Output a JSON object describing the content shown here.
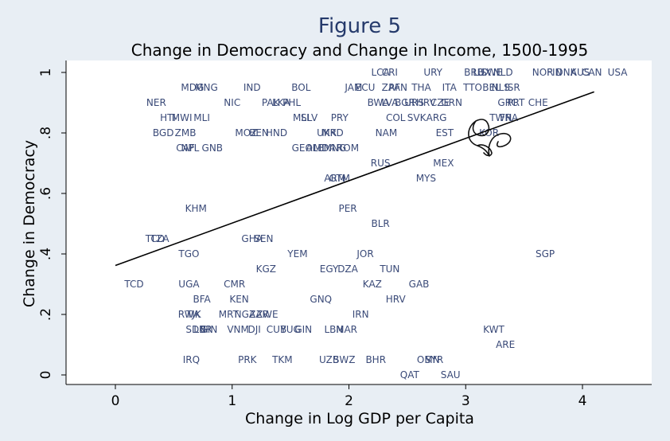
{
  "chart_data": {
    "type": "scatter",
    "title": "Figure 5",
    "subtitle": "Change in Democracy and Change in Income, 1500-1995",
    "xlabel": "Change in Log GDP per Capita",
    "ylabel": "Change in Democracy",
    "xlim": [
      -0.42,
      4.6
    ],
    "ylim": [
      -0.03,
      1.03
    ],
    "xticks": [
      0,
      1,
      2,
      3,
      4
    ],
    "xtick_labels": [
      "0",
      "1",
      "2",
      "3",
      "4"
    ],
    "yticks": [
      0,
      0.2,
      0.4,
      0.6,
      0.8,
      1
    ],
    "ytick_labels": [
      "0",
      ".2",
      ".4",
      ".6",
      ".8",
      "1"
    ],
    "grid": false,
    "fit_line": {
      "x": [
        0,
        4.1
      ],
      "y": [
        0.362,
        0.936
      ]
    },
    "points": [
      {
        "label": "LCA",
        "x": 2.27,
        "y": 1.0
      },
      {
        "label": "CRI",
        "x": 2.35,
        "y": 1.0
      },
      {
        "label": "URY",
        "x": 2.72,
        "y": 1.0
      },
      {
        "label": "BRB",
        "x": 3.07,
        "y": 1.0
      },
      {
        "label": "LUX",
        "x": 3.14,
        "y": 1.0
      },
      {
        "label": "SWE",
        "x": 3.22,
        "y": 1.0
      },
      {
        "label": "NLD",
        "x": 3.32,
        "y": 1.0
      },
      {
        "label": "NOR",
        "x": 3.66,
        "y": 1.0
      },
      {
        "label": "FIN",
        "x": 3.76,
        "y": 1.0
      },
      {
        "label": "DNK",
        "x": 3.86,
        "y": 1.0
      },
      {
        "label": "AUS",
        "x": 3.98,
        "y": 1.0
      },
      {
        "label": "CAN",
        "x": 4.08,
        "y": 1.0
      },
      {
        "label": "USA",
        "x": 4.3,
        "y": 1.0
      },
      {
        "label": "MDG",
        "x": 0.66,
        "y": 0.95
      },
      {
        "label": "MNG",
        "x": 0.78,
        "y": 0.95
      },
      {
        "label": "IND",
        "x": 1.17,
        "y": 0.95
      },
      {
        "label": "BOL",
        "x": 1.59,
        "y": 0.95
      },
      {
        "label": "JAM",
        "x": 2.04,
        "y": 0.95
      },
      {
        "label": "ECU",
        "x": 2.14,
        "y": 0.95
      },
      {
        "label": "ZAF",
        "x": 2.36,
        "y": 0.95
      },
      {
        "label": "PAN",
        "x": 2.42,
        "y": 0.95
      },
      {
        "label": "THA",
        "x": 2.62,
        "y": 0.95
      },
      {
        "label": "ITA",
        "x": 2.86,
        "y": 0.95
      },
      {
        "label": "TTO",
        "x": 3.06,
        "y": 0.95
      },
      {
        "label": "BEL",
        "x": 3.22,
        "y": 0.95
      },
      {
        "label": "NLS",
        "x": 3.3,
        "y": 0.95
      },
      {
        "label": "ISR",
        "x": 3.4,
        "y": 0.95
      },
      {
        "label": "NER",
        "x": 0.35,
        "y": 0.9
      },
      {
        "label": "NIC",
        "x": 1.0,
        "y": 0.9
      },
      {
        "label": "PAK",
        "x": 1.33,
        "y": 0.9
      },
      {
        "label": "LKA",
        "x": 1.42,
        "y": 0.9
      },
      {
        "label": "PHL",
        "x": 1.51,
        "y": 0.9
      },
      {
        "label": "BWA",
        "x": 2.25,
        "y": 0.9
      },
      {
        "label": "LVA",
        "x": 2.35,
        "y": 0.9
      },
      {
        "label": "BGR",
        "x": 2.48,
        "y": 0.9
      },
      {
        "label": "URS",
        "x": 2.56,
        "y": 0.9
      },
      {
        "label": "HRV",
        "x": 2.66,
        "y": 0.9
      },
      {
        "label": "CZE",
        "x": 2.78,
        "y": 0.9
      },
      {
        "label": "GRN",
        "x": 2.88,
        "y": 0.9
      },
      {
        "label": "GRC",
        "x": 3.36,
        "y": 0.9
      },
      {
        "label": "PRT",
        "x": 3.43,
        "y": 0.9
      },
      {
        "label": "CHE",
        "x": 3.62,
        "y": 0.9
      },
      {
        "label": "HTI",
        "x": 0.45,
        "y": 0.85
      },
      {
        "label": "MWI",
        "x": 0.57,
        "y": 0.85
      },
      {
        "label": "MLI",
        "x": 0.74,
        "y": 0.85
      },
      {
        "label": "MLI",
        "x": 1.59,
        "y": 0.85
      },
      {
        "label": "SLV",
        "x": 1.66,
        "y": 0.85
      },
      {
        "label": "PRY",
        "x": 1.92,
        "y": 0.85
      },
      {
        "label": "COL",
        "x": 2.4,
        "y": 0.85
      },
      {
        "label": "SVK",
        "x": 2.58,
        "y": 0.85
      },
      {
        "label": "ARG",
        "x": 2.75,
        "y": 0.85
      },
      {
        "label": "TWN",
        "x": 3.3,
        "y": 0.85
      },
      {
        "label": "FRA",
        "x": 3.37,
        "y": 0.85
      },
      {
        "label": "BGD",
        "x": 0.41,
        "y": 0.8
      },
      {
        "label": "ZMB",
        "x": 0.6,
        "y": 0.8
      },
      {
        "label": "MOZ",
        "x": 1.12,
        "y": 0.8
      },
      {
        "label": "BEN",
        "x": 1.23,
        "y": 0.8
      },
      {
        "label": "HND",
        "x": 1.38,
        "y": 0.8
      },
      {
        "label": "UKR",
        "x": 1.81,
        "y": 0.8
      },
      {
        "label": "MKD",
        "x": 1.86,
        "y": 0.8
      },
      {
        "label": "NAM",
        "x": 2.32,
        "y": 0.8
      },
      {
        "label": "EST",
        "x": 2.82,
        "y": 0.8
      },
      {
        "label": "KOR",
        "x": 3.2,
        "y": 0.8
      },
      {
        "label": "CAF",
        "x": 0.6,
        "y": 0.75
      },
      {
        "label": "NPL",
        "x": 0.64,
        "y": 0.75
      },
      {
        "label": "GNB",
        "x": 0.83,
        "y": 0.75
      },
      {
        "label": "GEO",
        "x": 1.6,
        "y": 0.75
      },
      {
        "label": "ALB",
        "x": 1.71,
        "y": 0.75
      },
      {
        "label": "MDA",
        "x": 1.79,
        "y": 0.75
      },
      {
        "label": "MNG",
        "x": 1.88,
        "y": 0.75
      },
      {
        "label": "ROM",
        "x": 1.99,
        "y": 0.75
      },
      {
        "label": "RUS",
        "x": 2.27,
        "y": 0.7
      },
      {
        "label": "MEX",
        "x": 2.81,
        "y": 0.7
      },
      {
        "label": "ARM",
        "x": 1.88,
        "y": 0.65
      },
      {
        "label": "GTM",
        "x": 1.92,
        "y": 0.65
      },
      {
        "label": "MYS",
        "x": 2.66,
        "y": 0.65
      },
      {
        "label": "KHM",
        "x": 0.69,
        "y": 0.55
      },
      {
        "label": "PER",
        "x": 1.99,
        "y": 0.55
      },
      {
        "label": "BLR",
        "x": 2.27,
        "y": 0.5
      },
      {
        "label": "TCD",
        "x": 0.34,
        "y": 0.45
      },
      {
        "label": "TZA",
        "x": 0.38,
        "y": 0.45
      },
      {
        "label": "GHA",
        "x": 1.17,
        "y": 0.45
      },
      {
        "label": "SEN",
        "x": 1.27,
        "y": 0.45
      },
      {
        "label": "TGO",
        "x": 0.63,
        "y": 0.4
      },
      {
        "label": "YEM",
        "x": 1.56,
        "y": 0.4
      },
      {
        "label": "JOR",
        "x": 2.14,
        "y": 0.4
      },
      {
        "label": "SGP",
        "x": 3.68,
        "y": 0.4
      },
      {
        "label": "KGZ",
        "x": 1.29,
        "y": 0.35
      },
      {
        "label": "EGY",
        "x": 1.83,
        "y": 0.35
      },
      {
        "label": "DZA",
        "x": 1.99,
        "y": 0.35
      },
      {
        "label": "TUN",
        "x": 2.35,
        "y": 0.35
      },
      {
        "label": "TCD",
        "x": 0.16,
        "y": 0.3
      },
      {
        "label": "UGA",
        "x": 0.63,
        "y": 0.3
      },
      {
        "label": "CMR",
        "x": 1.02,
        "y": 0.3
      },
      {
        "label": "KAZ",
        "x": 2.2,
        "y": 0.3
      },
      {
        "label": "GAB",
        "x": 2.6,
        "y": 0.3
      },
      {
        "label": "BFA",
        "x": 0.74,
        "y": 0.25
      },
      {
        "label": "KEN",
        "x": 1.06,
        "y": 0.25
      },
      {
        "label": "GNQ",
        "x": 1.76,
        "y": 0.25
      },
      {
        "label": "HRV",
        "x": 2.4,
        "y": 0.25
      },
      {
        "label": "RWA",
        "x": 0.63,
        "y": 0.2
      },
      {
        "label": "TJK",
        "x": 0.67,
        "y": 0.2
      },
      {
        "label": "MRT",
        "x": 0.97,
        "y": 0.2
      },
      {
        "label": "NGA",
        "x": 1.11,
        "y": 0.2
      },
      {
        "label": "ZAR",
        "x": 1.23,
        "y": 0.2
      },
      {
        "label": "ZWE",
        "x": 1.3,
        "y": 0.2
      },
      {
        "label": "IRN",
        "x": 2.1,
        "y": 0.2
      },
      {
        "label": "SDN",
        "x": 0.69,
        "y": 0.15
      },
      {
        "label": "LBR",
        "x": 0.75,
        "y": 0.15
      },
      {
        "label": "GIN",
        "x": 0.8,
        "y": 0.15
      },
      {
        "label": "VNM",
        "x": 1.05,
        "y": 0.15
      },
      {
        "label": "DJI",
        "x": 1.19,
        "y": 0.15
      },
      {
        "label": "CUB",
        "x": 1.38,
        "y": 0.15
      },
      {
        "label": "YUG",
        "x": 1.5,
        "y": 0.15
      },
      {
        "label": "GIN",
        "x": 1.61,
        "y": 0.15
      },
      {
        "label": "LBN",
        "x": 1.87,
        "y": 0.15
      },
      {
        "label": "MAR",
        "x": 1.98,
        "y": 0.15
      },
      {
        "label": "KWT",
        "x": 3.24,
        "y": 0.15
      },
      {
        "label": "ARE",
        "x": 3.34,
        "y": 0.1
      },
      {
        "label": "IRQ",
        "x": 0.65,
        "y": 0.05
      },
      {
        "label": "PRK",
        "x": 1.13,
        "y": 0.05
      },
      {
        "label": "TKM",
        "x": 1.43,
        "y": 0.05
      },
      {
        "label": "UZB",
        "x": 1.83,
        "y": 0.05
      },
      {
        "label": "SWZ",
        "x": 1.96,
        "y": 0.05
      },
      {
        "label": "BHR",
        "x": 2.23,
        "y": 0.05
      },
      {
        "label": "OMN",
        "x": 2.68,
        "y": 0.05
      },
      {
        "label": "SYR",
        "x": 2.73,
        "y": 0.05
      },
      {
        "label": "QAT",
        "x": 2.52,
        "y": 0.0
      },
      {
        "label": "SAU",
        "x": 2.87,
        "y": 0.0
      }
    ]
  }
}
